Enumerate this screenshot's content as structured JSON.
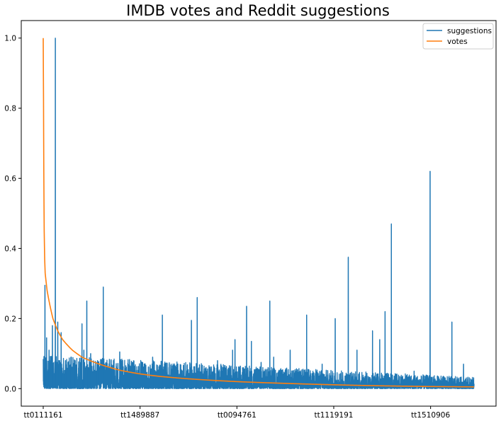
{
  "chart_data": {
    "type": "line",
    "title": "IMDB votes and Reddit suggestions",
    "xlabel": "",
    "ylabel": "",
    "ylim": [
      -0.05,
      1.05
    ],
    "yticks": [
      "0.0",
      "0.2",
      "0.4",
      "0.6",
      "0.8",
      "1.0"
    ],
    "x_tick_labels": [
      "tt0111161",
      "tt1489887",
      "tt0094761",
      "tt1119191",
      "tt1510906"
    ],
    "x_tick_positions": [
      0,
      1000,
      2000,
      3000,
      4000
    ],
    "n_points": 4450,
    "legend_position": "upper right",
    "grid": false,
    "series": [
      {
        "name": "suggestions",
        "color": "#1f77b4",
        "baseline_noise": {
          "low": 0.0,
          "high": 0.06,
          "decay_to": 0.02
        },
        "spikes": [
          {
            "x": 18,
            "y": 0.295
          },
          {
            "x": 35,
            "y": 0.145
          },
          {
            "x": 60,
            "y": 0.11
          },
          {
            "x": 95,
            "y": 0.18
          },
          {
            "x": 125,
            "y": 1.0
          },
          {
            "x": 150,
            "y": 0.19
          },
          {
            "x": 185,
            "y": 0.16
          },
          {
            "x": 230,
            "y": 0.08
          },
          {
            "x": 290,
            "y": 0.09
          },
          {
            "x": 330,
            "y": 0.08
          },
          {
            "x": 400,
            "y": 0.185
          },
          {
            "x": 420,
            "y": 0.11
          },
          {
            "x": 450,
            "y": 0.25
          },
          {
            "x": 490,
            "y": 0.1
          },
          {
            "x": 560,
            "y": 0.065
          },
          {
            "x": 620,
            "y": 0.29
          },
          {
            "x": 700,
            "y": 0.08
          },
          {
            "x": 790,
            "y": 0.105
          },
          {
            "x": 900,
            "y": 0.06
          },
          {
            "x": 1130,
            "y": 0.09
          },
          {
            "x": 1230,
            "y": 0.21
          },
          {
            "x": 1300,
            "y": 0.07
          },
          {
            "x": 1530,
            "y": 0.195
          },
          {
            "x": 1590,
            "y": 0.26
          },
          {
            "x": 1800,
            "y": 0.08
          },
          {
            "x": 1955,
            "y": 0.11
          },
          {
            "x": 1980,
            "y": 0.14
          },
          {
            "x": 2100,
            "y": 0.235
          },
          {
            "x": 2150,
            "y": 0.135
          },
          {
            "x": 2250,
            "y": 0.075
          },
          {
            "x": 2340,
            "y": 0.25
          },
          {
            "x": 2380,
            "y": 0.09
          },
          {
            "x": 2550,
            "y": 0.11
          },
          {
            "x": 2720,
            "y": 0.21
          },
          {
            "x": 2880,
            "y": 0.07
          },
          {
            "x": 3015,
            "y": 0.2
          },
          {
            "x": 3150,
            "y": 0.375
          },
          {
            "x": 3240,
            "y": 0.11
          },
          {
            "x": 3400,
            "y": 0.165
          },
          {
            "x": 3475,
            "y": 0.14
          },
          {
            "x": 3530,
            "y": 0.22
          },
          {
            "x": 3595,
            "y": 0.47
          },
          {
            "x": 3830,
            "y": 0.05
          },
          {
            "x": 3995,
            "y": 0.62
          },
          {
            "x": 4220,
            "y": 0.19
          },
          {
            "x": 4340,
            "y": 0.07
          }
        ]
      },
      {
        "name": "votes",
        "color": "#ff7f0e",
        "decay_curve": [
          [
            0,
            1.0
          ],
          [
            3,
            0.83
          ],
          [
            6,
            0.62
          ],
          [
            10,
            0.45
          ],
          [
            15,
            0.37
          ],
          [
            20,
            0.33
          ],
          [
            40,
            0.28
          ],
          [
            60,
            0.25
          ],
          [
            100,
            0.2
          ],
          [
            150,
            0.165
          ],
          [
            200,
            0.14
          ],
          [
            300,
            0.11
          ],
          [
            400,
            0.09
          ],
          [
            500,
            0.078
          ],
          [
            600,
            0.068
          ],
          [
            800,
            0.052
          ],
          [
            1000,
            0.042
          ],
          [
            1200,
            0.035
          ],
          [
            1500,
            0.028
          ],
          [
            2000,
            0.02
          ],
          [
            2500,
            0.015
          ],
          [
            3000,
            0.011
          ],
          [
            3500,
            0.008
          ],
          [
            4000,
            0.006
          ],
          [
            4449,
            0.005
          ]
        ]
      }
    ]
  }
}
